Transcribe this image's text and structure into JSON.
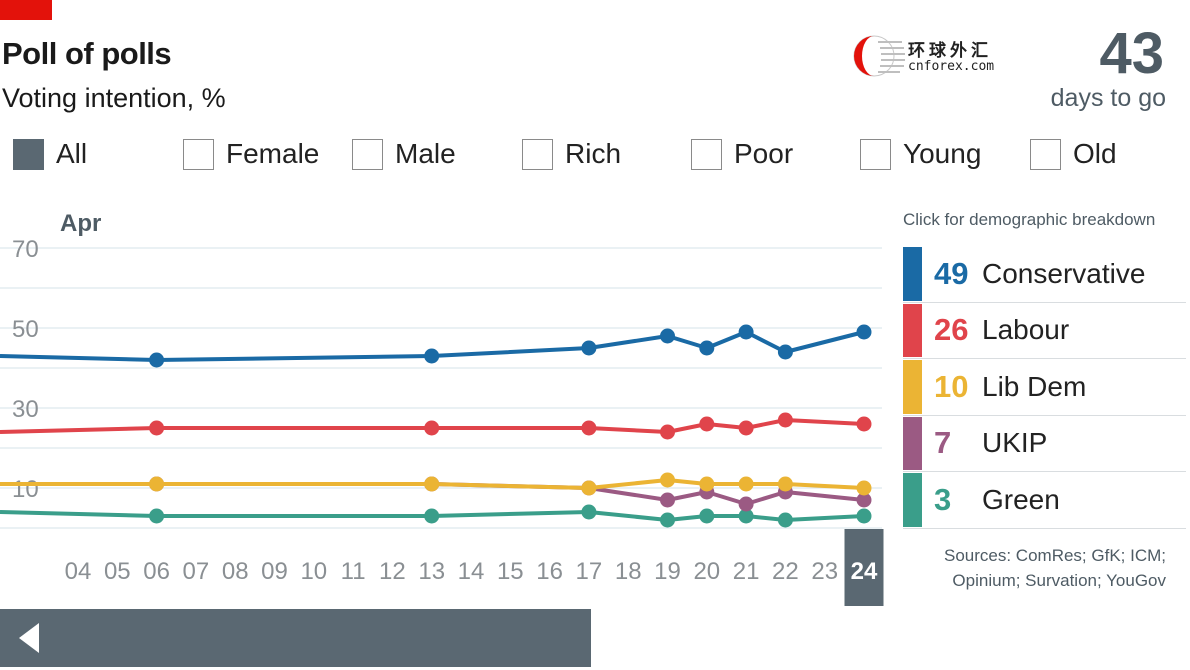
{
  "header": {
    "title": "Poll of polls",
    "subtitle": "Voting intention, %",
    "countdown_value": "43",
    "countdown_label": "days to go"
  },
  "watermark": {
    "cn": "环球外汇",
    "en": "cnforex.com"
  },
  "filters": [
    {
      "label": "All",
      "active": true
    },
    {
      "label": "Female",
      "active": false
    },
    {
      "label": "Male",
      "active": false
    },
    {
      "label": "Rich",
      "active": false
    },
    {
      "label": "Poor",
      "active": false
    },
    {
      "label": "Young",
      "active": false
    },
    {
      "label": "Old",
      "active": false
    }
  ],
  "breakdown_hint": "Click for demographic breakdown",
  "legend": [
    {
      "value": "49",
      "name": "Conservative",
      "color": "#1a6aa5"
    },
    {
      "value": "26",
      "name": "Labour",
      "color": "#e0444b"
    },
    {
      "value": "10",
      "name": "Lib Dem",
      "color": "#ebb434"
    },
    {
      "value": "7",
      "name": "UKIP",
      "color": "#9b5a83"
    },
    {
      "value": "3",
      "name": "Green",
      "color": "#3a9e8a"
    }
  ],
  "sources": "Sources: ComRes; GfK; ICM; Opinium; Survation; YouGov",
  "chart_data": {
    "type": "line",
    "month_label": "Apr",
    "x_ticks": [
      "04",
      "05",
      "06",
      "07",
      "08",
      "09",
      "10",
      "11",
      "12",
      "13",
      "14",
      "15",
      "16",
      "17",
      "18",
      "19",
      "20",
      "21",
      "22",
      "23",
      "24"
    ],
    "highlight_x": "24",
    "y_ticks": [
      10,
      30,
      50,
      70
    ],
    "ylim": [
      0,
      70
    ],
    "grid": true,
    "series": [
      {
        "name": "Conservative",
        "color": "#1a6aa5",
        "points": [
          [
            3,
            43
          ],
          [
            6,
            42
          ],
          [
            13,
            43
          ],
          [
            17,
            45
          ],
          [
            19,
            48
          ],
          [
            20,
            45
          ],
          [
            21,
            49
          ],
          [
            22,
            44
          ],
          [
            24,
            49
          ]
        ]
      },
      {
        "name": "Labour",
        "color": "#e0444b",
        "points": [
          [
            3,
            24
          ],
          [
            6,
            25
          ],
          [
            13,
            25
          ],
          [
            17,
            25
          ],
          [
            19,
            24
          ],
          [
            20,
            26
          ],
          [
            21,
            25
          ],
          [
            22,
            27
          ],
          [
            24,
            26
          ]
        ]
      },
      {
        "name": "Lib Dem",
        "color": "#ebb434",
        "points": [
          [
            3,
            11
          ],
          [
            6,
            11
          ],
          [
            13,
            11
          ],
          [
            17,
            10
          ],
          [
            19,
            12
          ],
          [
            20,
            11
          ],
          [
            21,
            11
          ],
          [
            22,
            11
          ],
          [
            24,
            10
          ]
        ]
      },
      {
        "name": "UKIP",
        "color": "#9b5a83",
        "points": [
          [
            3,
            11
          ],
          [
            6,
            11
          ],
          [
            13,
            11
          ],
          [
            17,
            10
          ],
          [
            19,
            7
          ],
          [
            20,
            9
          ],
          [
            21,
            6
          ],
          [
            22,
            9
          ],
          [
            24,
            7
          ]
        ]
      },
      {
        "name": "Green",
        "color": "#3a9e8a",
        "points": [
          [
            3,
            4
          ],
          [
            6,
            3
          ],
          [
            13,
            3
          ],
          [
            17,
            4
          ],
          [
            19,
            2
          ],
          [
            20,
            3
          ],
          [
            21,
            3
          ],
          [
            22,
            2
          ],
          [
            24,
            3
          ]
        ]
      }
    ]
  }
}
